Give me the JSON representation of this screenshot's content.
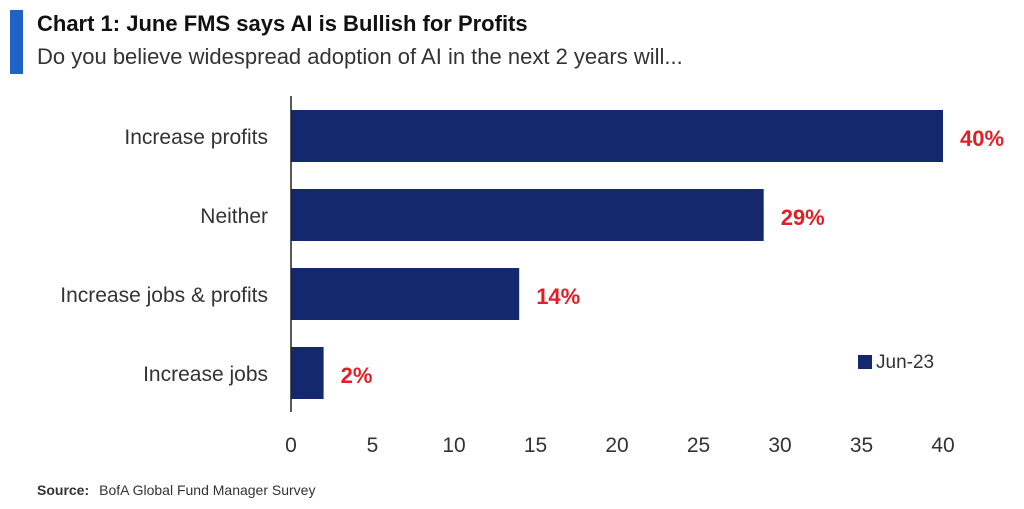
{
  "header": {
    "title": "Chart 1:  June FMS says AI is Bullish for Profits",
    "subtitle": "Do you believe widespread adoption of AI in the next 2 years will..."
  },
  "footer": {
    "source_label": "Source:",
    "source_text": "BofA Global Fund Manager Survey"
  },
  "colors": {
    "accent": "#1f63c8",
    "bar": "#14286e",
    "value_label": "#e41e26"
  },
  "chart_data": {
    "type": "bar",
    "orientation": "horizontal",
    "categories": [
      "Increase profits",
      "Neither",
      "Increase jobs & profits",
      "Increase jobs"
    ],
    "series": [
      {
        "name": "Jun-23",
        "values": [
          40,
          29,
          14,
          2
        ]
      }
    ],
    "value_labels": [
      "40%",
      "29%",
      "14%",
      "2%"
    ],
    "xlim": [
      0,
      40
    ],
    "xticks": [
      0,
      5,
      10,
      15,
      20,
      25,
      30,
      35,
      40
    ],
    "grid": false,
    "legend_position": "bottom-right"
  }
}
